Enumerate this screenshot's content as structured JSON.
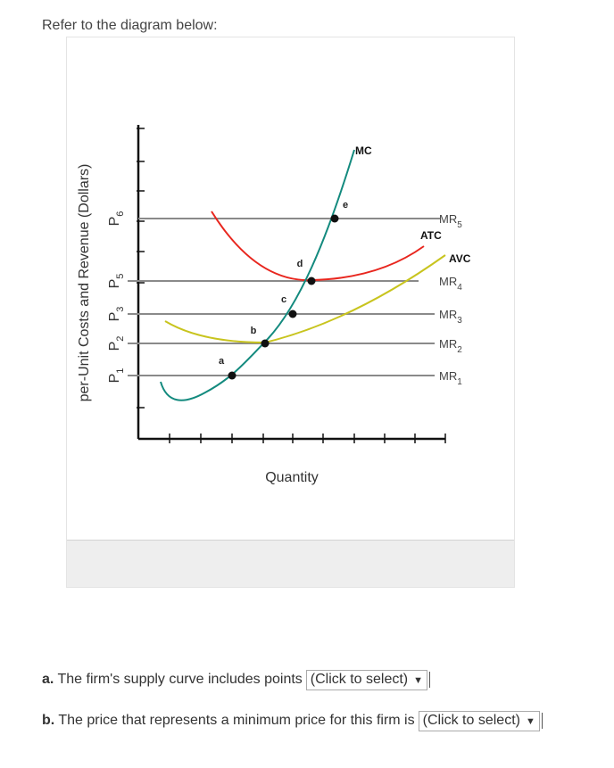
{
  "intro": "Refer to the diagram below:",
  "chart_data": {
    "type": "line",
    "xlabel": "Quantity",
    "ylabel": "per-Unit Costs and Revenue (Dollars)",
    "price_levels": [
      {
        "base": "P",
        "sub": "1",
        "value": 1
      },
      {
        "base": "P",
        "sub": "2",
        "value": 2
      },
      {
        "base": "P",
        "sub": "3",
        "value": 3
      },
      {
        "base": "P",
        "sub": "5",
        "value": 5
      },
      {
        "base": "P",
        "sub": "6",
        "value": 6
      }
    ],
    "mr_lines": [
      {
        "base": "MR",
        "sub": "1",
        "price": 1
      },
      {
        "base": "MR",
        "sub": "2",
        "price": 2
      },
      {
        "base": "MR",
        "sub": "3",
        "price": 3
      },
      {
        "base": "MR",
        "sub": "4",
        "price": 5
      },
      {
        "base": "MR",
        "sub": "5",
        "price": 6
      }
    ],
    "curves": [
      {
        "name": "MC",
        "color": "#138a7e"
      },
      {
        "name": "ATC",
        "color": "#e8261e"
      },
      {
        "name": "AVC",
        "color": "#c8c41e"
      }
    ],
    "points": [
      {
        "label": "a",
        "price": 1
      },
      {
        "label": "b",
        "price": 2
      },
      {
        "label": "c",
        "price": 3
      },
      {
        "label": "d",
        "price": 5
      },
      {
        "label": "e",
        "price": 6
      }
    ],
    "mr_color": "#8a8a8a"
  },
  "questions": [
    {
      "letter": "a.",
      "text": "The firm's supply curve includes points",
      "select": "(Click to select)"
    },
    {
      "letter": "b.",
      "text": "The price that represents a minimum price for this firm is",
      "select": "(Click to select)"
    }
  ]
}
